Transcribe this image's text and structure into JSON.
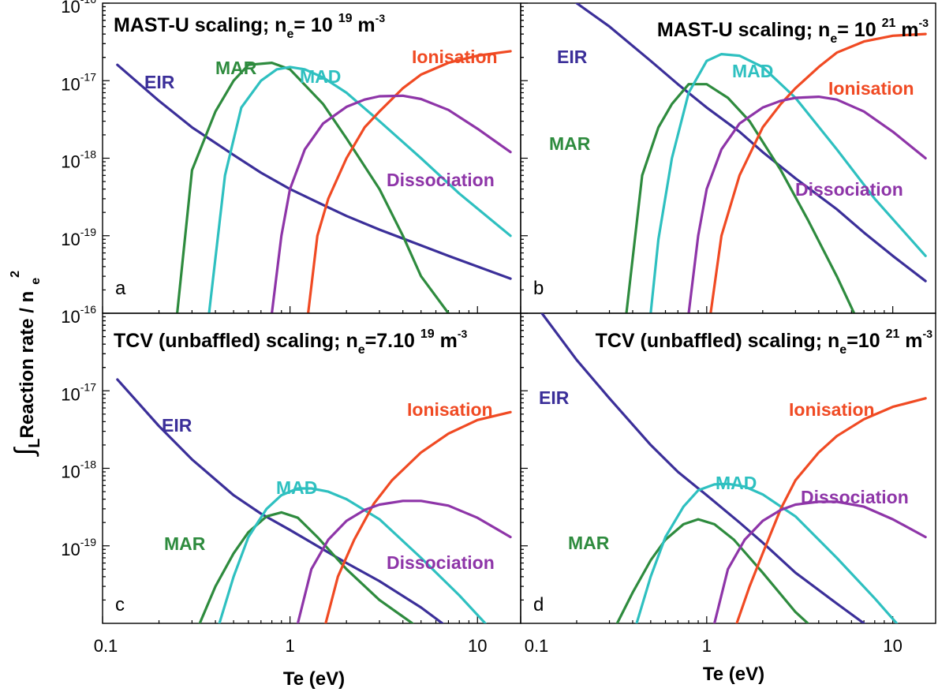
{
  "figure": {
    "ylabel": "∫LReaction rate / n e 2",
    "ylabel_parts": {
      "integral": "∫",
      "sub": "L",
      "main": "Reaction rate / n",
      "e": "e",
      "sup": "2"
    },
    "xlabel": "Te (eV)",
    "x_tick_labels": [
      "0.1",
      "1",
      "10"
    ],
    "y_tick_labels": [
      {
        "base": "10",
        "exp": "-16"
      },
      {
        "base": "10",
        "exp": "-17"
      },
      {
        "base": "10",
        "exp": "-18"
      },
      {
        "base": "10",
        "exp": "-19"
      }
    ]
  },
  "colors": {
    "EIR": "#3b2f99",
    "MAR": "#2e8b3e",
    "MAD": "#2ec0c0",
    "Ionisation": "#f04a23",
    "Dissociation": "#8e35a8"
  },
  "chart_data": [
    {
      "type": "line",
      "panel": "a",
      "title": {
        "prefix": "MAST-U scaling; n",
        "sub": "e",
        "mid": "= 10 ",
        "sup": "19",
        "unit": " m",
        "unit_sup": "-3"
      },
      "x_scale": "log",
      "y_scale": "log",
      "xlim": [
        0.1,
        17
      ],
      "ylim": [
        1e-20,
        1e-16
      ],
      "series": [
        {
          "name": "EIR",
          "x": [
            0.12,
            0.2,
            0.3,
            0.5,
            0.7,
            1,
            1.5,
            2,
            3,
            5,
            7,
            10,
            15
          ],
          "y": [
            1.6e-17,
            5.5e-18,
            2.5e-18,
            1.1e-18,
            6.5e-19,
            4e-19,
            2.5e-19,
            1.8e-19,
            1.2e-19,
            7.5e-20,
            5.5e-20,
            4e-20,
            2.8e-20
          ]
        },
        {
          "name": "MAR",
          "x": [
            0.25,
            0.3,
            0.4,
            0.5,
            0.6,
            0.8,
            1,
            1.5,
            2,
            3,
            4,
            5,
            7
          ],
          "y": [
            1e-20,
            7e-19,
            4e-18,
            1e-17,
            1.6e-17,
            1.7e-17,
            1.4e-17,
            5e-18,
            1.8e-18,
            4e-19,
            1e-19,
            3e-20,
            1e-20
          ]
        },
        {
          "name": "MAD",
          "x": [
            0.37,
            0.45,
            0.55,
            0.7,
            0.85,
            1,
            1.2,
            1.5,
            2,
            3,
            5,
            8,
            15
          ],
          "y": [
            1e-20,
            6e-19,
            4.5e-18,
            1e-17,
            1.4e-17,
            1.5e-17,
            1.4e-17,
            1.1e-17,
            7e-18,
            3e-18,
            1e-18,
            3.5e-19,
            1e-19
          ]
        },
        {
          "name": "Ionisation",
          "x": [
            1.25,
            1.4,
            1.6,
            2,
            2.5,
            3,
            4,
            5,
            7,
            10,
            15
          ],
          "y": [
            1e-20,
            1e-19,
            3e-19,
            1e-18,
            2.5e-18,
            4e-18,
            8e-18,
            1.2e-17,
            1.7e-17,
            2.1e-17,
            2.4e-17
          ]
        },
        {
          "name": "Dissociation",
          "x": [
            0.8,
            0.9,
            1,
            1.2,
            1.5,
            2,
            2.5,
            3,
            4,
            5,
            7,
            10,
            15
          ],
          "y": [
            1e-20,
            1e-19,
            4e-19,
            1.3e-18,
            2.8e-18,
            4.6e-18,
            5.7e-18,
            6.3e-18,
            6.4e-18,
            5.8e-18,
            4.2e-18,
            2.4e-18,
            1.2e-18
          ]
        }
      ],
      "labels": [
        {
          "series": "EIR",
          "text": "EIR"
        },
        {
          "series": "MAR",
          "text": "MAR"
        },
        {
          "series": "MAD",
          "text": "MAD"
        },
        {
          "series": "Ionisation",
          "text": "Ionisation"
        },
        {
          "series": "Dissociation",
          "text": "Dissociation"
        }
      ]
    },
    {
      "type": "line",
      "panel": "b",
      "title": {
        "prefix": "MAST-U scaling; n",
        "sub": "e",
        "mid": "= 10 ",
        "sup": "21",
        "unit": " m",
        "unit_sup": "-3"
      },
      "x_scale": "log",
      "y_scale": "log",
      "xlim": [
        0.1,
        17
      ],
      "ylim": [
        1e-20,
        1e-16
      ],
      "series": [
        {
          "name": "EIR",
          "x": [
            0.2,
            0.3,
            0.5,
            0.7,
            1,
            1.5,
            2,
            3,
            5,
            7,
            10,
            15
          ],
          "y": [
            1e-16,
            5e-17,
            1.8e-17,
            9e-18,
            4.5e-18,
            2.2e-18,
            1.2e-18,
            5.5e-19,
            2.2e-19,
            1.1e-19,
            5.5e-20,
            2.6e-20
          ]
        },
        {
          "name": "MAR",
          "x": [
            0.37,
            0.45,
            0.55,
            0.65,
            0.8,
            1,
            1.3,
            1.7,
            2.5,
            3.5,
            5,
            6.2
          ],
          "y": [
            1e-20,
            6e-19,
            2.5e-18,
            5e-18,
            9e-18,
            9e-18,
            6e-18,
            3e-18,
            7e-19,
            1.6e-19,
            3e-20,
            1e-20
          ]
        },
        {
          "name": "MAD",
          "x": [
            0.5,
            0.55,
            0.65,
            0.8,
            1,
            1.2,
            1.5,
            2,
            3,
            5,
            8,
            15
          ],
          "y": [
            1e-20,
            9e-20,
            1e-18,
            7e-18,
            1.8e-17,
            2.2e-17,
            2.1e-17,
            1.5e-17,
            6e-18,
            1.3e-18,
            3e-19,
            5.5e-20
          ]
        },
        {
          "name": "Ionisation",
          "x": [
            1.05,
            1.2,
            1.5,
            2,
            2.5,
            3,
            4,
            5,
            7,
            10,
            15
          ],
          "y": [
            1e-20,
            1e-19,
            6e-19,
            2.5e-18,
            5e-18,
            8e-18,
            1.5e-17,
            2.3e-17,
            3.2e-17,
            3.8e-17,
            4e-17
          ]
        },
        {
          "name": "Dissociation",
          "x": [
            0.8,
            0.9,
            1,
            1.2,
            1.5,
            2,
            2.5,
            3,
            4,
            5,
            7,
            10,
            15
          ],
          "y": [
            1e-20,
            1e-19,
            4e-19,
            1.3e-18,
            2.8e-18,
            4.5e-18,
            5.5e-18,
            6e-18,
            6.2e-18,
            5.7e-18,
            4e-18,
            2.2e-18,
            1e-18
          ]
        }
      ],
      "labels": [
        {
          "series": "EIR",
          "text": "EIR"
        },
        {
          "series": "MAR",
          "text": "MAR"
        },
        {
          "series": "MAD",
          "text": "MAD"
        },
        {
          "series": "Ionisation",
          "text": "Ionisation"
        },
        {
          "series": "Dissociation",
          "text": "Dissociation"
        }
      ]
    },
    {
      "type": "line",
      "panel": "c",
      "title": {
        "prefix": "TCV (unbaffled) scaling; n",
        "sub": "e",
        "mid": "=7.10 ",
        "sup": "19",
        "unit": " m",
        "unit_sup": "-3"
      },
      "x_scale": "log",
      "y_scale": "log",
      "xlim": [
        0.1,
        17
      ],
      "ylim": [
        1e-20,
        1e-16
      ],
      "series": [
        {
          "name": "EIR",
          "x": [
            0.12,
            0.2,
            0.3,
            0.5,
            0.7,
            1,
            1.5,
            2,
            3,
            5,
            6.5
          ],
          "y": [
            1.4e-17,
            3.5e-18,
            1.3e-18,
            4.5e-19,
            2.6e-19,
            1.6e-19,
            9e-20,
            6e-20,
            3.5e-20,
            1.6e-20,
            1e-20
          ]
        },
        {
          "name": "MAR",
          "x": [
            0.33,
            0.4,
            0.5,
            0.6,
            0.75,
            0.9,
            1.1,
            1.4,
            2,
            3,
            4.5
          ],
          "y": [
            1e-20,
            3e-20,
            8e-20,
            1.5e-19,
            2.4e-19,
            2.7e-19,
            2.3e-19,
            1.3e-19,
            5e-20,
            2e-20,
            1e-20
          ]
        },
        {
          "name": "MAD",
          "x": [
            0.42,
            0.5,
            0.6,
            0.75,
            0.9,
            1.1,
            1.3,
            1.6,
            2,
            3,
            5,
            8,
            11
          ],
          "y": [
            1e-20,
            4e-20,
            1.3e-19,
            3e-19,
            4.5e-19,
            5.5e-19,
            5.5e-19,
            5e-19,
            4e-19,
            2.2e-19,
            7e-20,
            2.3e-20,
            1e-20
          ]
        },
        {
          "name": "Ionisation",
          "x": [
            1.55,
            1.8,
            2.2,
            2.8,
            3.5,
            5,
            7,
            10,
            15
          ],
          "y": [
            1e-20,
            4e-20,
            1.2e-19,
            3.5e-19,
            7e-19,
            1.6e-18,
            2.8e-18,
            4.2e-18,
            5.3e-18
          ]
        },
        {
          "name": "Dissociation",
          "x": [
            1.1,
            1.3,
            1.6,
            2,
            2.5,
            3,
            4,
            5,
            7,
            10,
            15
          ],
          "y": [
            1e-20,
            5e-20,
            1.2e-19,
            2.1e-19,
            2.9e-19,
            3.4e-19,
            3.8e-19,
            3.8e-19,
            3.3e-19,
            2.3e-19,
            1.3e-19
          ]
        }
      ],
      "labels": [
        {
          "series": "EIR",
          "text": "EIR"
        },
        {
          "series": "MAR",
          "text": "MAR"
        },
        {
          "series": "MAD",
          "text": "MAD"
        },
        {
          "series": "Ionisation",
          "text": "Ionisation"
        },
        {
          "series": "Dissociation",
          "text": "Dissociation"
        }
      ]
    },
    {
      "type": "line",
      "panel": "d",
      "title": {
        "prefix": "TCV (unbaffled) scaling; n",
        "sub": "e",
        "mid": "=10 ",
        "sup": "21",
        "unit": " m",
        "unit_sup": "-3"
      },
      "x_scale": "log",
      "y_scale": "log",
      "xlim": [
        0.1,
        17
      ],
      "ylim": [
        1e-20,
        1e-16
      ],
      "series": [
        {
          "name": "EIR",
          "x": [
            0.13,
            0.2,
            0.3,
            0.5,
            0.7,
            1,
            1.5,
            2,
            3,
            5,
            7
          ],
          "y": [
            1e-16,
            2.5e-17,
            8e-18,
            2e-18,
            9e-19,
            4.5e-19,
            2e-19,
            1.1e-19,
            4.5e-20,
            1.8e-20,
            1e-20
          ]
        },
        {
          "name": "MAR",
          "x": [
            0.33,
            0.4,
            0.5,
            0.6,
            0.75,
            0.9,
            1.1,
            1.4,
            2,
            3,
            3.5
          ],
          "y": [
            1e-20,
            2.5e-20,
            6.5e-20,
            1.2e-19,
            1.9e-19,
            2.2e-19,
            1.9e-19,
            1.2e-19,
            4.5e-20,
            1.4e-20,
            1e-20
          ]
        },
        {
          "name": "MAD",
          "x": [
            0.42,
            0.5,
            0.6,
            0.75,
            0.9,
            1.1,
            1.3,
            1.6,
            2,
            3,
            5,
            8,
            10.5
          ],
          "y": [
            1e-20,
            4e-20,
            1.3e-19,
            3.2e-19,
            5.2e-19,
            6.2e-19,
            6.3e-19,
            5.8e-19,
            4.6e-19,
            2.4e-19,
            7e-20,
            2.1e-20,
            1e-20
          ]
        },
        {
          "name": "Ionisation",
          "x": [
            1.45,
            1.7,
            2,
            2.5,
            3,
            4,
            5,
            7,
            10,
            15
          ],
          "y": [
            1e-20,
            3e-20,
            8e-20,
            3e-19,
            7e-19,
            1.6e-18,
            2.6e-18,
            4.3e-18,
            6.2e-18,
            8e-18
          ]
        },
        {
          "name": "Dissociation",
          "x": [
            1.1,
            1.3,
            1.6,
            2,
            2.5,
            3,
            4,
            5,
            7,
            10,
            15
          ],
          "y": [
            1e-20,
            5e-20,
            1.2e-19,
            2.1e-19,
            2.9e-19,
            3.4e-19,
            3.7e-19,
            3.7e-19,
            3.2e-19,
            2.2e-19,
            1.3e-19
          ]
        }
      ],
      "labels": [
        {
          "series": "EIR",
          "text": "EIR"
        },
        {
          "series": "MAR",
          "text": "MAR"
        },
        {
          "series": "MAD",
          "text": "MAD"
        },
        {
          "series": "Ionisation",
          "text": "Ionisation"
        },
        {
          "series": "Dissociation",
          "text": "Dissociation"
        }
      ]
    }
  ]
}
